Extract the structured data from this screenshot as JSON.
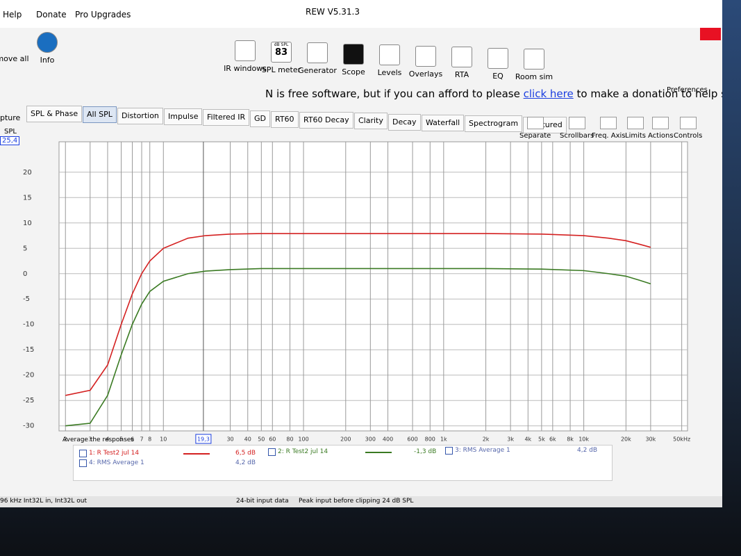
{
  "window": {
    "title": "REW V5.31.3"
  },
  "menu": [
    "Help",
    "Donate",
    "Pro Upgrades"
  ],
  "left_tools": [
    "move all",
    "Info"
  ],
  "toolbar": [
    "IR windows",
    "SPL meter",
    "Generator",
    "Scope",
    "Levels",
    "Overlays",
    "RTA",
    "EQ",
    "Room sim"
  ],
  "spl_meter": {
    "unit": "dB SPL",
    "reading": "83"
  },
  "preferences": "Preferences",
  "donation": {
    "before": "N is free software, but if you can afford to please ",
    "link": "click here",
    "after": " to make a donation to help support its continuing development"
  },
  "side": {
    "capture": "pture",
    "axis_label": "SPL",
    "readout": "25,4"
  },
  "tabs": [
    "SPL & Phase",
    "All SPL",
    "Distortion",
    "Impulse",
    "Filtered IR",
    "GD",
    "RT60",
    "RT60 Decay",
    "Clarity",
    "Decay",
    "Waterfall",
    "Spectrogram",
    "Captured"
  ],
  "active_tab": "All SPL",
  "tools": [
    "Separate",
    "Scrollbars",
    "Freq. Axis",
    "Limits",
    "Actions",
    "Controls"
  ],
  "chart_data": {
    "type": "line",
    "log_x": true,
    "grid": true,
    "x": [
      2,
      3,
      4,
      5,
      6,
      7,
      8,
      10,
      15,
      20,
      30,
      50,
      100,
      200,
      500,
      1000,
      2000,
      5000,
      10000,
      15000,
      20000,
      25000,
      30000
    ],
    "series": [
      {
        "name": "1: R Test2 jul 14",
        "color": "#d42020",
        "readout": "6,5 dB",
        "values": [
          -24,
          -23,
          -18,
          -10,
          -4,
          0,
          2.5,
          5,
          7,
          7.5,
          7.8,
          7.9,
          7.9,
          7.9,
          7.9,
          7.9,
          7.9,
          7.8,
          7.5,
          7,
          6.5,
          5.8,
          5.2
        ]
      },
      {
        "name": "2: R Test2 jul 14",
        "color": "#3a7a22",
        "readout": "-1,3 dB",
        "values": [
          -30,
          -29.5,
          -24,
          -16,
          -10,
          -6,
          -3.5,
          -1.5,
          0,
          0.5,
          0.8,
          1,
          1,
          1,
          1,
          1,
          1,
          0.9,
          0.6,
          0,
          -0.5,
          -1.3,
          -2
        ]
      }
    ],
    "xlim": [
      1.8,
      55000
    ],
    "ylim": [
      -31,
      26
    ],
    "yticks": [
      -30,
      -25,
      -20,
      -15,
      -10,
      -5,
      0,
      5,
      10,
      15,
      20
    ],
    "xticks": [
      2,
      3,
      4,
      5,
      6,
      7,
      8,
      10,
      30,
      40,
      50,
      60,
      80,
      100,
      200,
      300,
      400,
      600,
      800,
      {
        "value": 1000,
        "label": "1k"
      },
      {
        "value": 2000,
        "label": "2k"
      },
      {
        "value": 3000,
        "label": "3k"
      },
      {
        "value": 4000,
        "label": "4k"
      },
      {
        "value": 5000,
        "label": "5k"
      },
      {
        "value": 6000,
        "label": "6k"
      },
      {
        "value": 8000,
        "label": "8k"
      },
      {
        "value": 10000,
        "label": "10k"
      },
      {
        "value": 20000,
        "label": "20k"
      },
      {
        "value": 30000,
        "label": "30k"
      },
      {
        "value": 50000,
        "label": "50kHz"
      }
    ],
    "cursor": {
      "value": 19.3,
      "label": "19,3"
    }
  },
  "legend": {
    "average": "Average the responses",
    "items": [
      {
        "label": "3: RMS Average 1",
        "readout": "4,2 dB"
      },
      {
        "label": "4: RMS Average 1",
        "readout": "4,2 dB"
      }
    ]
  },
  "status": {
    "format": "24-bit input data",
    "peak": "Peak input before clipping 24 dB SPL",
    "rate": "96 kHz  Int32L in, Int32L out"
  }
}
